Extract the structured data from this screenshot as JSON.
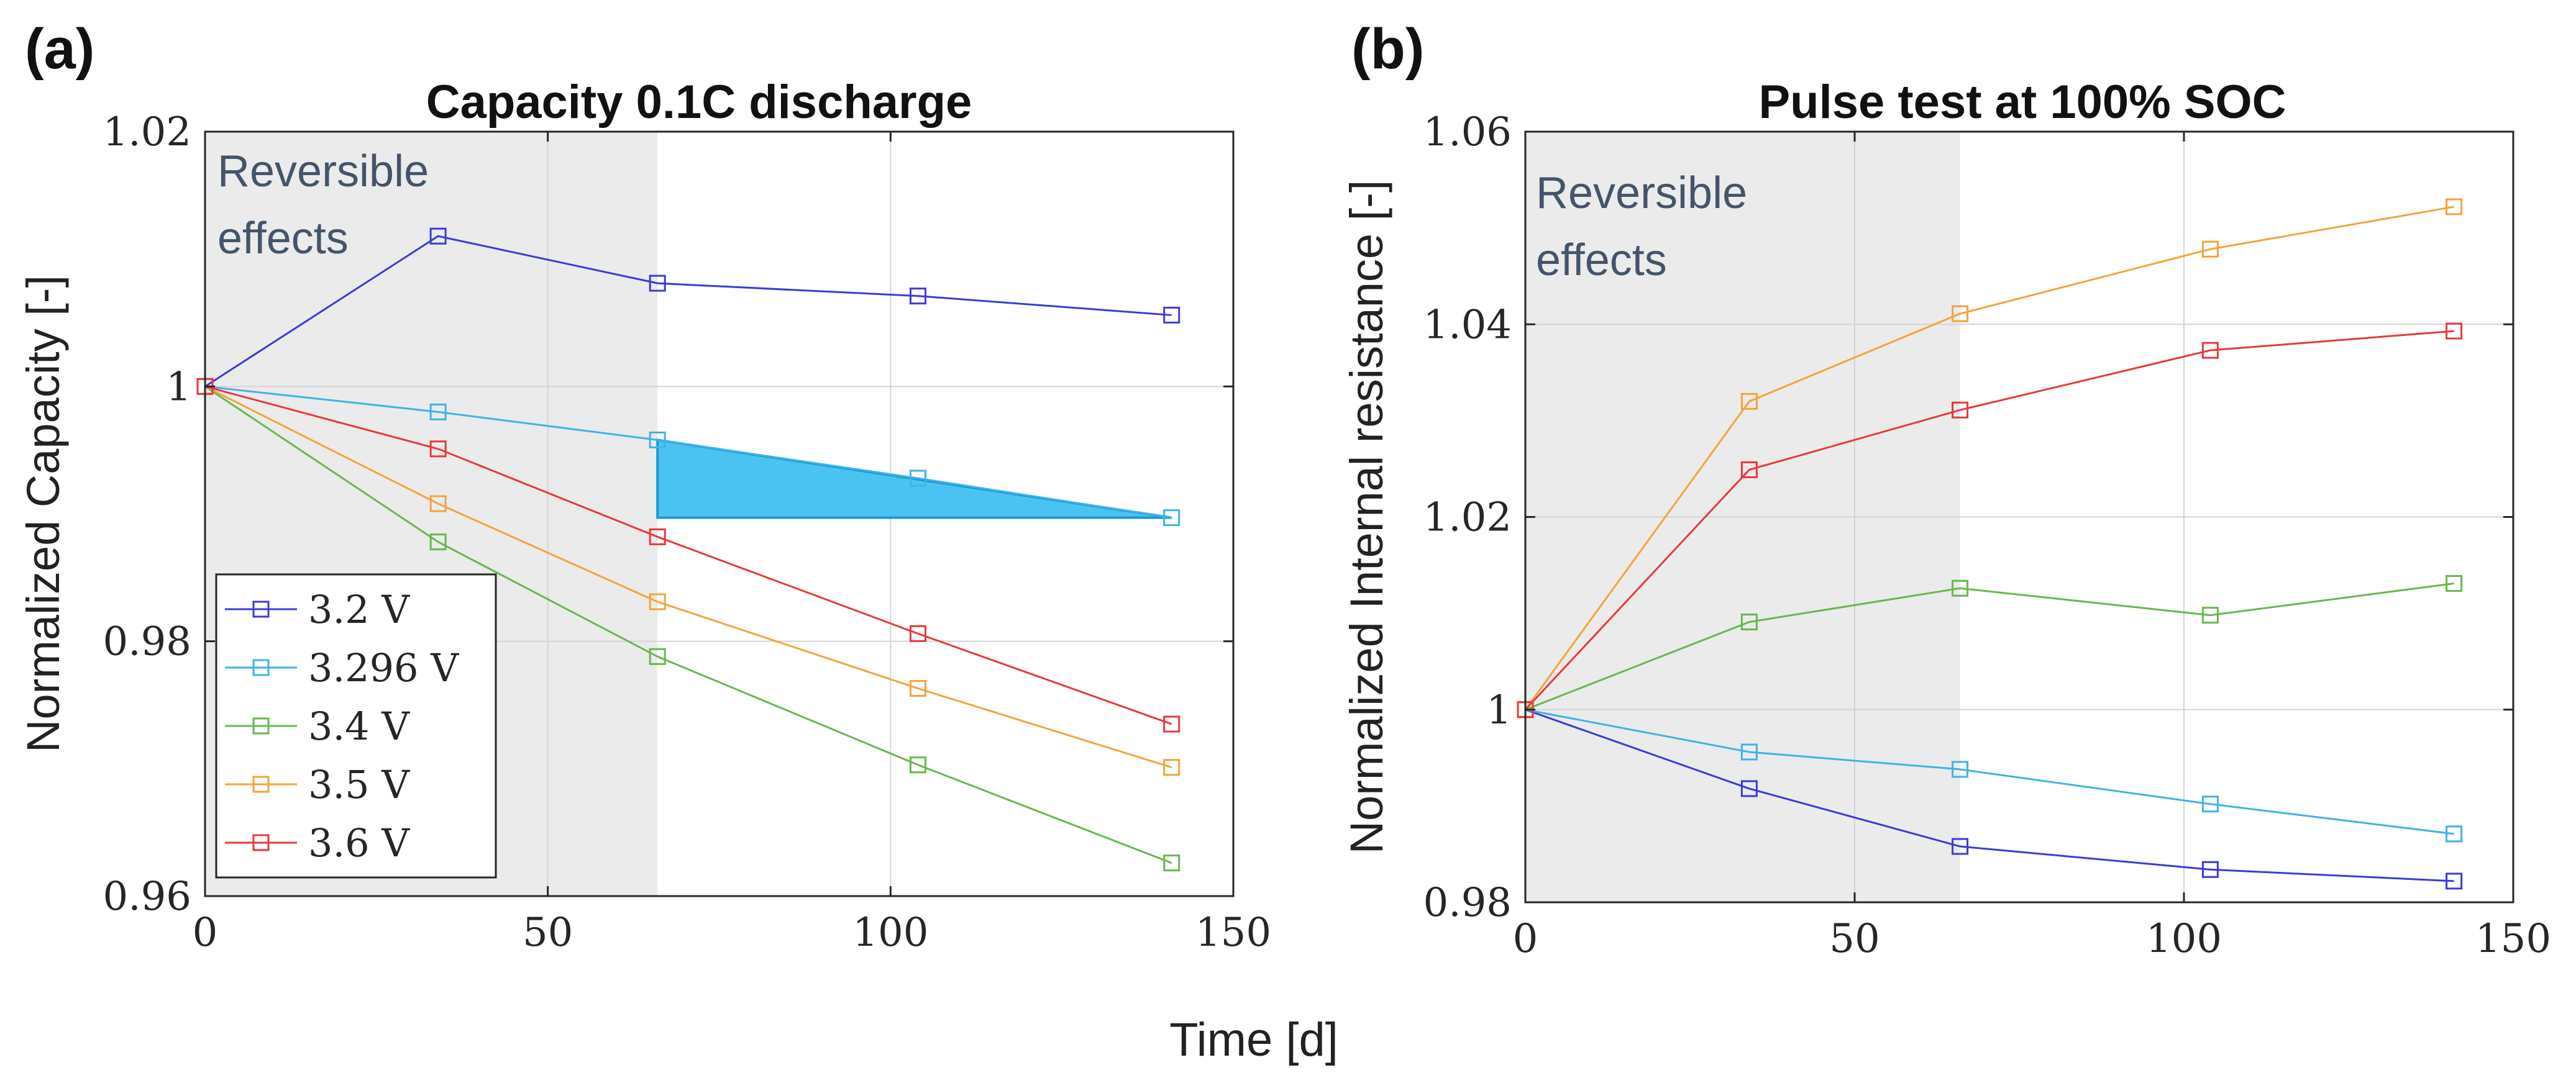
{
  "shared": {
    "xlabel": "Time [d]",
    "shade_label_line1": "Reversible",
    "shade_label_line2": "effects"
  },
  "colors": {
    "3.2 V": "#3b3bd8",
    "3.296 V": "#3eb3e6",
    "3.4 V": "#66b84f",
    "3.5 V": "#f5a33a",
    "3.6 V": "#e8393a",
    "shade": "#ebebeb",
    "triangle_fill": "#4bc3f0",
    "triangle_edge": "#169ad8"
  },
  "chart_data": [
    {
      "type": "line",
      "panel_label": "(a)",
      "title": "Capacity 0.1C discharge",
      "xlabel": "Time [d]",
      "ylabel": "Normalized Capacity [-]",
      "xlim": [
        0,
        150
      ],
      "ylim": [
        0.96,
        1.02
      ],
      "xticks": [
        0,
        50,
        100,
        150
      ],
      "xtick_labels": [
        "0",
        "50",
        "100",
        "150"
      ],
      "yticks": [
        0.96,
        0.98,
        1.0,
        1.02
      ],
      "ytick_labels": [
        "0.96",
        "0.98",
        "1",
        "1.02"
      ],
      "shaded_region_x": [
        0,
        66
      ],
      "x": [
        0,
        34,
        66,
        104,
        141
      ],
      "series": [
        {
          "name": "3.2 V",
          "values": [
            1.0,
            1.0118,
            1.0081,
            1.0071,
            1.0056
          ]
        },
        {
          "name": "3.296 V",
          "values": [
            1.0,
            0.998,
            0.9958,
            0.9928,
            0.9897
          ]
        },
        {
          "name": "3.4 V",
          "values": [
            1.0,
            0.9878,
            0.9788,
            0.9703,
            0.9626
          ]
        },
        {
          "name": "3.5 V",
          "values": [
            1.0,
            0.9908,
            0.9831,
            0.9763,
            0.9701
          ]
        },
        {
          "name": "3.6 V",
          "values": [
            1.0,
            0.9951,
            0.9882,
            0.9806,
            0.9735
          ]
        }
      ],
      "annotation_triangle": [
        [
          66,
          0.9958
        ],
        [
          66,
          0.9897
        ],
        [
          141,
          0.9897
        ]
      ],
      "legend": [
        "3.2 V",
        "3.296 V",
        "3.4 V",
        "3.5 V",
        "3.6 V"
      ],
      "legend_location": "bottom-left",
      "grid": true
    },
    {
      "type": "line",
      "panel_label": "(b)",
      "title": "Pulse test at 100% SOC",
      "xlabel": "Time [d]",
      "ylabel": "Normalized Internal resistance [-]",
      "xlim": [
        0,
        150
      ],
      "ylim": [
        0.98,
        1.06
      ],
      "xticks": [
        0,
        50,
        100,
        150
      ],
      "xtick_labels": [
        "0",
        "50",
        "100",
        "150"
      ],
      "yticks": [
        0.98,
        1.0,
        1.02,
        1.04,
        1.06
      ],
      "ytick_labels": [
        "0.98",
        "1",
        "1.02",
        "1.04",
        "1.06"
      ],
      "shaded_region_x": [
        0,
        66
      ],
      "x": [
        0,
        34,
        66,
        104,
        141
      ],
      "series": [
        {
          "name": "3.2 V",
          "values": [
            1.0,
            0.9918,
            0.9858,
            0.9834,
            0.9822
          ]
        },
        {
          "name": "3.296 V",
          "values": [
            1.0,
            0.9956,
            0.9938,
            0.9902,
            0.9871
          ]
        },
        {
          "name": "3.4 V",
          "values": [
            1.0,
            1.0091,
            1.0126,
            1.0098,
            1.0131
          ]
        },
        {
          "name": "3.5 V",
          "values": [
            1.0,
            1.032,
            1.0411,
            1.0478,
            1.0522
          ]
        },
        {
          "name": "3.6 V",
          "values": [
            1.0,
            1.0249,
            1.0311,
            1.0373,
            1.0393
          ]
        }
      ],
      "grid": true
    }
  ]
}
